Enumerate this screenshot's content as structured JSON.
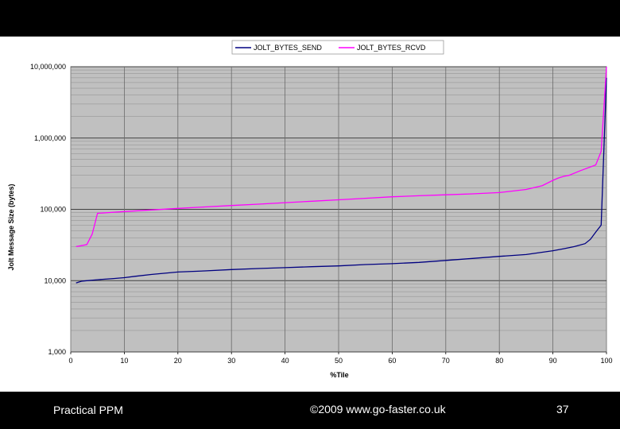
{
  "footer": {
    "left": "Practical PPM",
    "center": "©2009 www.go-faster.co.uk",
    "page": "37"
  },
  "chart_data": {
    "type": "line",
    "xlabel": "%Tile",
    "ylabel": "Jolt Message Size (bytes)",
    "y_scale": "log",
    "ylim": [
      1000,
      10000000
    ],
    "xlim": [
      0,
      100
    ],
    "grid": true,
    "legend_position": "top-center",
    "x_ticks": [
      "0",
      "10",
      "20",
      "30",
      "40",
      "50",
      "60",
      "70",
      "80",
      "90",
      "100"
    ],
    "y_ticks": [
      "1,000",
      "10,000",
      "100,000",
      "1,000,000",
      "10,000,000"
    ],
    "series": [
      {
        "name": "JOLT_BYTES_SEND",
        "color": "#000080",
        "x": [
          1,
          2,
          3,
          5,
          8,
          10,
          12,
          15,
          20,
          25,
          30,
          35,
          40,
          45,
          50,
          55,
          60,
          65,
          70,
          75,
          80,
          85,
          90,
          92,
          94,
          96,
          97,
          98,
          99,
          100
        ],
        "y": [
          9300,
          9800,
          10000,
          10300,
          10700,
          11000,
          11500,
          12200,
          13200,
          13700,
          14300,
          14800,
          15200,
          15700,
          16100,
          16800,
          17300,
          18000,
          19200,
          20500,
          21900,
          23200,
          26300,
          28000,
          30000,
          33000,
          38000,
          48000,
          60000,
          7000000
        ]
      },
      {
        "name": "JOLT_BYTES_RCVD",
        "color": "#ff00ff",
        "x": [
          1,
          2,
          3,
          4,
          5,
          7,
          10,
          15,
          20,
          25,
          30,
          35,
          40,
          45,
          50,
          55,
          60,
          65,
          70,
          75,
          80,
          85,
          88,
          90,
          91,
          92,
          93,
          95,
          98,
          99,
          100
        ],
        "y": [
          30000,
          31000,
          32000,
          45000,
          88000,
          90000,
          93000,
          98000,
          103000,
          108000,
          113000,
          118000,
          124000,
          130000,
          136000,
          143000,
          150000,
          155000,
          160000,
          165000,
          172000,
          190000,
          215000,
          255000,
          275000,
          290000,
          300000,
          345000,
          420000,
          650000,
          10000000
        ]
      }
    ]
  }
}
